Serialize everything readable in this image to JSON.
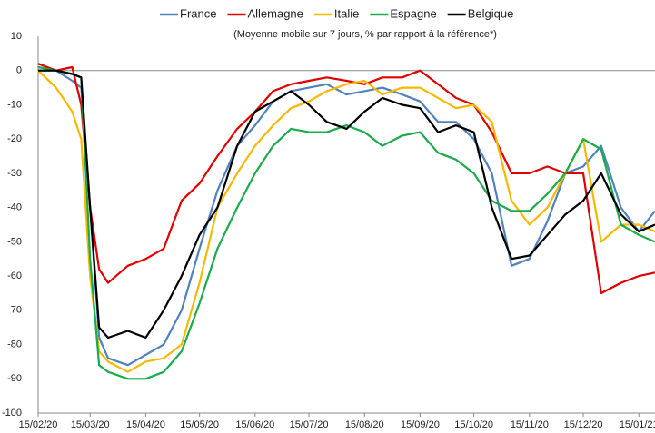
{
  "chart_data": {
    "type": "line",
    "subtitle": "(Moyenne mobile sur 7 jours, % par rapport à la référence*)",
    "x": [
      "15/02/20",
      "25/02/20",
      "05/03/20",
      "10/03/20",
      "15/03/20",
      "20/03/20",
      "25/03/20",
      "05/04/20",
      "15/04/20",
      "25/04/20",
      "05/05/20",
      "15/05/20",
      "25/05/20",
      "05/06/20",
      "15/06/20",
      "25/06/20",
      "05/07/20",
      "15/07/20",
      "25/07/20",
      "05/08/20",
      "15/08/20",
      "25/08/20",
      "05/09/20",
      "15/09/20",
      "25/09/20",
      "05/10/20",
      "15/10/20",
      "25/10/20",
      "05/11/20",
      "15/11/20",
      "25/11/20",
      "05/12/20",
      "15/12/20",
      "25/12/20",
      "05/01/21",
      "15/01/21",
      "24/01/21"
    ],
    "series": [
      {
        "name": "France",
        "color": "#4f81bd",
        "values": [
          0,
          0,
          -3,
          -5,
          -40,
          -78,
          -84,
          -86,
          -83,
          -80,
          -70,
          -52,
          -35,
          -22,
          -16,
          -9,
          -6,
          -5,
          -4,
          -7,
          -6,
          -5,
          -7,
          -9,
          -15,
          -15,
          -20,
          -30,
          -57,
          -55,
          -44,
          -30,
          -28,
          -22,
          -40,
          -47,
          -41
        ]
      },
      {
        "name": "Allemagne",
        "color": "#e00000",
        "values": [
          2,
          0,
          1,
          -10,
          -40,
          -58,
          -62,
          -57,
          -55,
          -52,
          -38,
          -33,
          -25,
          -17,
          -12,
          -6,
          -4,
          -3,
          -2,
          -3,
          -4,
          -2,
          -2,
          0,
          -4,
          -8,
          -10,
          -18,
          -30,
          -30,
          -28,
          -30,
          -30,
          -65,
          -62,
          -60,
          -59
        ]
      },
      {
        "name": "Italie",
        "color": "#f6b800",
        "values": [
          0,
          -5,
          -12,
          -20,
          -60,
          -82,
          -85,
          -88,
          -85,
          -84,
          -80,
          -62,
          -40,
          -30,
          -22,
          -16,
          -11,
          -9,
          -6,
          -4,
          -3,
          -7,
          -5,
          -5,
          -8,
          -11,
          -10,
          -15,
          -38,
          -45,
          -40,
          -30,
          -20,
          -50,
          -45,
          -45,
          -47
        ]
      },
      {
        "name": "Espagne",
        "color": "#1aab4b",
        "values": [
          1,
          0,
          -1,
          -2,
          -55,
          -86,
          -88,
          -90,
          -90,
          -88,
          -82,
          -68,
          -52,
          -40,
          -30,
          -22,
          -17,
          -18,
          -18,
          -16,
          -18,
          -22,
          -19,
          -18,
          -24,
          -26,
          -30,
          -38,
          -41,
          -41,
          -36,
          -30,
          -20,
          -23,
          -45,
          -48,
          -50
        ]
      },
      {
        "name": "Belgique",
        "color": "#000000",
        "values": [
          0,
          0,
          -1,
          -2,
          -40,
          -75,
          -78,
          -76,
          -78,
          -70,
          -60,
          -48,
          -40,
          -22,
          -12,
          -9,
          -6,
          -10,
          -15,
          -17,
          -12,
          -8,
          -10,
          -11,
          -18,
          -16,
          -18,
          -40,
          -55,
          -54,
          -48,
          -42,
          -38,
          -30,
          -42,
          -47,
          -45
        ]
      }
    ],
    "xlim": [
      "15/02/20",
      "24/01/21"
    ],
    "xticks": [
      "15/02/20",
      "15/03/20",
      "15/04/20",
      "15/05/20",
      "15/06/20",
      "15/07/20",
      "15/08/20",
      "15/09/20",
      "15/10/20",
      "15/11/20",
      "15/12/20",
      "15/01/21"
    ],
    "ylim": [
      -100,
      10
    ],
    "yticks": [
      10,
      0,
      -10,
      -20,
      -30,
      -40,
      -50,
      -60,
      -70,
      -80,
      -90,
      -100
    ]
  }
}
